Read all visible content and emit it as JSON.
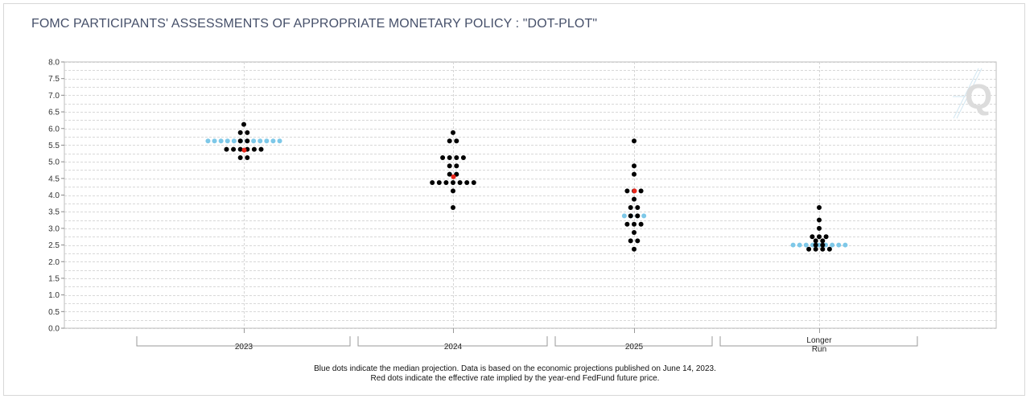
{
  "title": "FOMC PARTICIPANTS' ASSESSMENTS OF APPROPRIATE MONETARY POLICY : \"DOT-PLOT\"",
  "footnote_line1": "Blue dots indicate the median projection. Data is based on the economic projections published on June 14, 2023.",
  "footnote_line2": "Red dots indicate the effective rate implied by the year-end FedFund future price.",
  "watermark": "Q",
  "colors": {
    "participant": "#000000",
    "median": "#7ec8e8",
    "implied": "#e8261b",
    "grid": "#cccccc"
  },
  "chart_data": {
    "type": "scatter",
    "title": "FOMC PARTICIPANTS' ASSESSMENTS OF APPROPRIATE MONETARY POLICY : \"DOT-PLOT\"",
    "ylim": [
      0,
      8
    ],
    "y_ticks": [
      "0.0",
      "0.5",
      "1.0",
      "1.5",
      "2.0",
      "2.5",
      "3.0",
      "3.5",
      "4.0",
      "4.5",
      "5.0",
      "5.5",
      "6.0",
      "6.5",
      "7.0",
      "7.5",
      "8.0"
    ],
    "grid": true,
    "categories": [
      "2023",
      "2024",
      "2025",
      "Longer Run"
    ],
    "category_labels": [
      [
        "2023"
      ],
      [
        "2024"
      ],
      [
        "2025"
      ],
      [
        "Longer",
        "Run"
      ]
    ],
    "series": [
      {
        "name": "Participants",
        "rows": [
          [
            [
              6.125,
              1
            ],
            [
              5.875,
              2
            ],
            [
              5.625,
              2
            ],
            [
              5.375,
              6
            ],
            [
              5.125,
              2
            ]
          ],
          [
            [
              5.875,
              1
            ],
            [
              5.625,
              2
            ],
            [
              5.125,
              4
            ],
            [
              4.875,
              2
            ],
            [
              4.625,
              2
            ],
            [
              4.375,
              7
            ],
            [
              4.125,
              1
            ],
            [
              3.625,
              1
            ]
          ],
          [
            [
              5.625,
              1
            ],
            [
              4.875,
              1
            ],
            [
              4.625,
              1
            ],
            [
              4.125,
              3
            ],
            [
              3.875,
              1
            ],
            [
              3.625,
              2
            ],
            [
              3.375,
              2
            ],
            [
              3.125,
              3
            ],
            [
              2.875,
              1
            ],
            [
              2.625,
              2
            ],
            [
              2.375,
              1
            ]
          ],
          [
            [
              3.625,
              1
            ],
            [
              3.25,
              1
            ],
            [
              3.0,
              1
            ],
            [
              2.75,
              3
            ],
            [
              2.625,
              2
            ],
            [
              2.5,
              2
            ],
            [
              2.375,
              4
            ]
          ]
        ]
      },
      {
        "name": "Median",
        "points": [
          [
            0,
            5.625
          ],
          [
            1,
            4.625
          ],
          [
            2,
            3.375
          ],
          [
            3,
            2.5
          ]
        ],
        "widths": [
          12,
          2,
          4,
          9
        ]
      },
      {
        "name": "Implied",
        "points": [
          [
            0,
            5.35
          ],
          [
            1,
            4.55
          ],
          [
            2,
            4.125
          ]
        ]
      }
    ]
  }
}
